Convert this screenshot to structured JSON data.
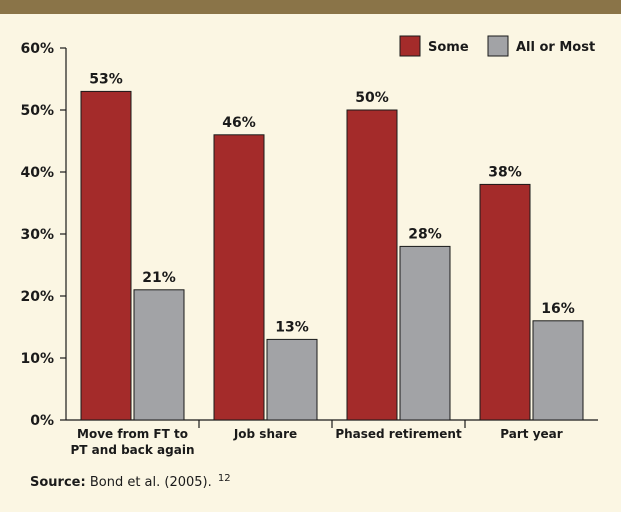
{
  "chart_data": {
    "type": "bar",
    "categories": [
      "Move from FT to\nPT and back again",
      "Job share",
      "Phased retirement",
      "Part year"
    ],
    "series": [
      {
        "name": "Some",
        "values": [
          53,
          46,
          50,
          38
        ],
        "color": "#a42b2a"
      },
      {
        "name": "All or Most",
        "values": [
          21,
          13,
          28,
          16
        ],
        "color": "#a2a3a6"
      }
    ],
    "value_suffix": "%",
    "yticks": [
      "0%",
      "10%",
      "20%",
      "30%",
      "40%",
      "50%",
      "60%"
    ],
    "ylim": [
      0,
      60
    ],
    "grid": false,
    "legend_position": "top-right"
  },
  "source": {
    "label": "Source:",
    "text": "Bond et al. (2005).",
    "note_number": "12"
  },
  "colors": {
    "background": "#fbf6e3",
    "top_band": "#8a7448"
  }
}
